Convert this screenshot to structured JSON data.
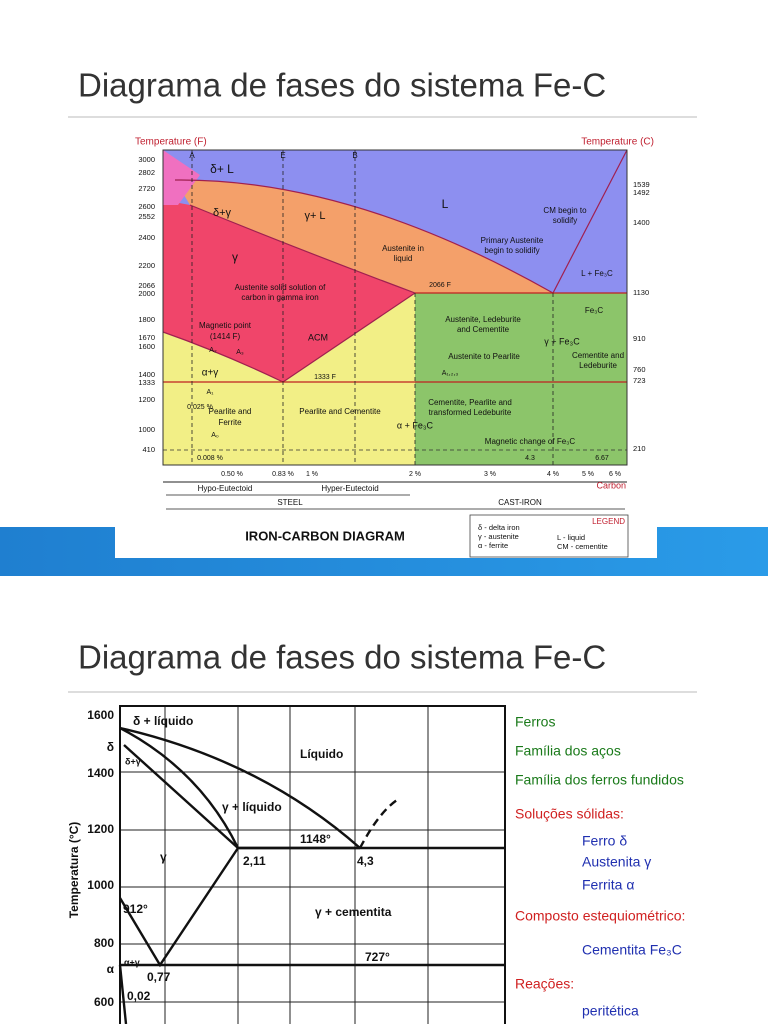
{
  "slides": [
    {
      "title": "Diagrama de fases do sistema Fe-C",
      "diagram": {
        "axis_f_label": "Temperature (F)",
        "axis_c_label": "Temperature (C)",
        "f_ticks": [
          "3000",
          "2802",
          "2720",
          "2600",
          "2552",
          "2400",
          "2200",
          "2066",
          "2000",
          "1800",
          "1670",
          "1600",
          "1400",
          "1333",
          "1200",
          "1000",
          "410"
        ],
        "c_ticks": [
          "1539",
          "1492",
          "1400",
          "1130",
          "910",
          "760",
          "723",
          "210"
        ],
        "labels": [
          "A",
          "E",
          "B",
          "δ+ L",
          "L",
          "δ+γ",
          "γ+ L",
          "γ",
          "Austenite in",
          "liquid",
          "Primary Austenite",
          "begin to solidify",
          "CM begin to",
          "solidify",
          "L + Fe₃C",
          "Austenite solid solution of",
          "carbon in gamma iron",
          "2066 F",
          "Austenite, Ledeburite",
          "and Cementite",
          "Fe₃C",
          "Magnetic point",
          "(1414 F)",
          "ACM",
          "γ + Fe₃C",
          "Cementite and",
          "Ledeburite",
          "Austenite to Pearlite",
          "α+γ",
          "1333 F",
          "A₁,₂,₃",
          "A₂",
          "A₃",
          "A₁",
          "0.025 %",
          "Pearlite and",
          "Ferrite",
          "Pearlite and Cementite",
          "Cementite, Pearlite and",
          "transformed Ledeburite",
          "α + Fe₃C",
          "A₀",
          "Magnetic change of Fe₃C",
          "0.008 %",
          "4.3",
          "6.67"
        ],
        "x_labels": [
          "0.50 %",
          "0.83 %",
          "1 %",
          "2 %",
          "3 %",
          "4 %",
          "5 %",
          "6 %",
          "Carbon"
        ],
        "brackets": [
          "Hypo-Eutectoid",
          "Hyper-Eutectoid",
          "STEEL",
          "CAST-IRON"
        ],
        "caption": "IRON-CARBON DIAGRAM",
        "legend": {
          "title": "LEGEND",
          "items": [
            "δ - delta iron",
            "γ - austenite",
            "α - ferrite",
            "L - liquid",
            "CM - cementite"
          ]
        }
      }
    },
    {
      "title": "Diagrama de fases do sistema Fe-C",
      "diagram": {
        "y_label": "Temperatura (°C)",
        "y_ticks": [
          "1600",
          "1400",
          "1200",
          "1000",
          "800",
          "600",
          "δ",
          "α"
        ],
        "labels": [
          "δ + líquido",
          "Líquido",
          "δ+γ",
          "γ + líquido",
          "1148°",
          "2,11",
          "4,3",
          "γ",
          "912°",
          "γ + cementita",
          "727°",
          "0,77",
          "0,02",
          "α+γ"
        ]
      },
      "key": [
        "Ferros",
        "Família dos aços",
        "Família dos ferros fundidos",
        "Soluções sólidas:",
        "Ferro δ",
        "Austenita γ",
        "Ferrita α",
        "Composto estequiométrico:",
        "Cementita Fe₃C",
        "Reações:",
        "peritética"
      ]
    }
  ]
}
